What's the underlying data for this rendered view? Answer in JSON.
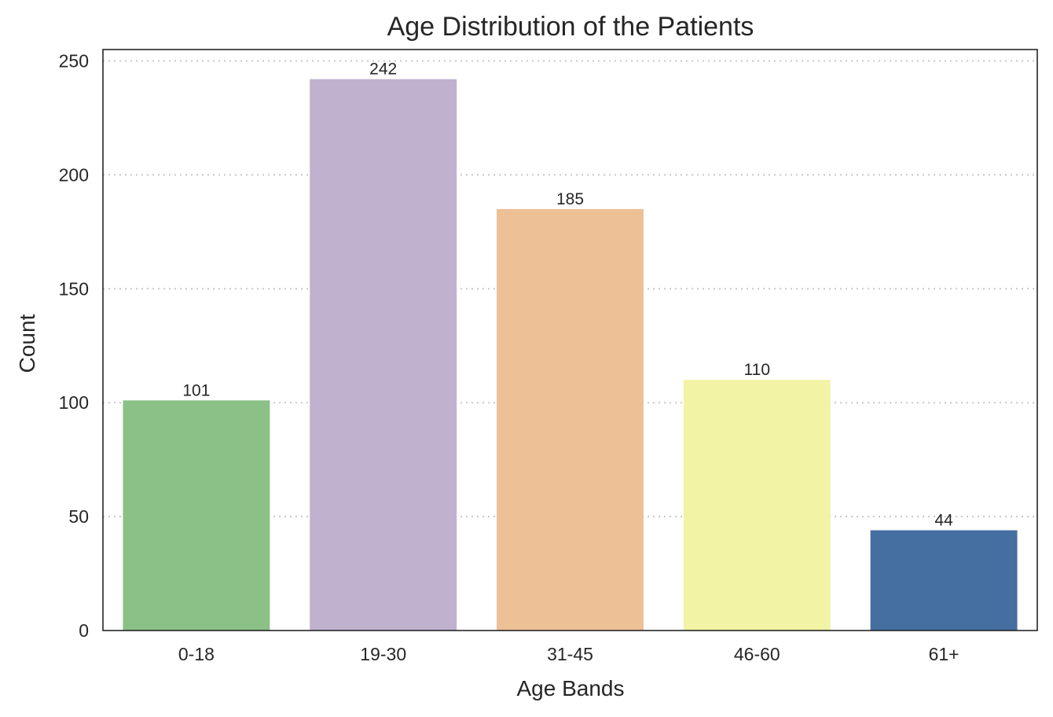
{
  "chart_data": {
    "type": "bar",
    "title": "Age Distribution of the Patients",
    "xlabel": "Age Bands",
    "ylabel": "Count",
    "categories": [
      "0-18",
      "19-30",
      "31-45",
      "46-60",
      "61+"
    ],
    "values": [
      101,
      242,
      185,
      110,
      44
    ],
    "data_labels": [
      "101",
      "242",
      "185",
      "110",
      "44"
    ],
    "colors": [
      "#8bc086",
      "#c0b2cf",
      "#edc096",
      "#f2f3a4",
      "#456ea1"
    ],
    "ylim": [
      0,
      255
    ],
    "yticks": [
      0,
      50,
      100,
      150,
      200,
      250
    ],
    "ytick_labels": [
      "0",
      "50",
      "100",
      "150",
      "200",
      "250"
    ],
    "grid": "y-dotted",
    "legend": "none"
  }
}
